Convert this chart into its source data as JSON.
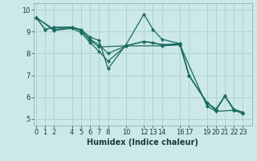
{
  "title": "",
  "xlabel": "Humidex (Indice chaleur)",
  "ylabel": "",
  "bg_color": "#cce8e8",
  "line_color": "#1a6b60",
  "grid_color": "#aad4d4",
  "lines": [
    {
      "x": [
        0,
        1,
        2,
        4,
        5,
        6,
        7,
        8,
        10,
        12,
        13,
        14,
        16,
        17,
        19,
        20,
        21,
        22,
        23
      ],
      "y": [
        9.65,
        9.1,
        9.2,
        9.2,
        9.1,
        8.75,
        8.6,
        7.3,
        8.4,
        9.8,
        9.1,
        8.65,
        8.45,
        7.0,
        5.75,
        5.4,
        6.05,
        5.4,
        5.3
      ]
    },
    {
      "x": [
        0,
        1,
        2,
        4,
        5,
        6,
        7,
        8,
        10,
        12,
        13,
        14,
        16,
        17,
        19,
        20,
        21,
        22,
        23
      ],
      "y": [
        9.65,
        9.1,
        9.2,
        9.2,
        9.05,
        8.65,
        8.4,
        8.0,
        8.35,
        8.55,
        8.5,
        8.4,
        8.45,
        7.0,
        5.75,
        5.45,
        6.05,
        5.45,
        5.3
      ]
    },
    {
      "x": [
        0,
        2,
        4,
        5,
        6,
        7,
        10,
        12,
        14,
        16,
        17,
        19,
        20,
        21,
        22,
        23
      ],
      "y": [
        9.65,
        9.1,
        9.2,
        9.05,
        8.6,
        8.3,
        8.35,
        8.55,
        8.4,
        8.4,
        7.0,
        5.75,
        5.45,
        6.05,
        5.45,
        5.3
      ]
    },
    {
      "x": [
        0,
        2,
        4,
        5,
        6,
        7,
        8,
        10,
        14,
        16,
        19,
        20,
        22,
        23
      ],
      "y": [
        9.65,
        9.05,
        9.15,
        8.95,
        8.5,
        8.1,
        7.65,
        8.35,
        8.35,
        8.4,
        5.6,
        5.35,
        5.4,
        5.25
      ]
    }
  ],
  "xticks": [
    0,
    1,
    2,
    4,
    5,
    6,
    7,
    8,
    10,
    12,
    13,
    14,
    16,
    17,
    19,
    20,
    21,
    22,
    23
  ],
  "yticks": [
    5,
    6,
    7,
    8,
    9,
    10
  ],
  "xlim": [
    -0.3,
    24.0
  ],
  "ylim": [
    4.7,
    10.3
  ],
  "marker": "D",
  "markersize": 2.0,
  "linewidth": 0.9,
  "xlabel_fontsize": 7,
  "tick_fontsize": 6
}
